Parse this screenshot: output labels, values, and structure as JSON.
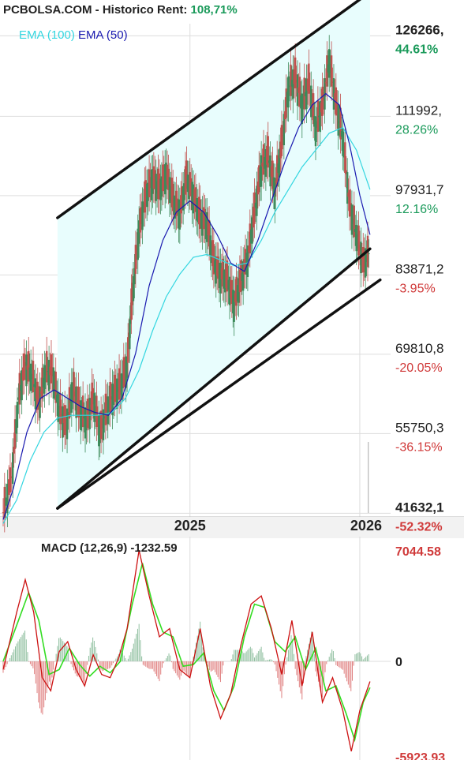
{
  "header": {
    "site": "PCBOLSA.COM - Historico",
    "rent_label": "Rent:",
    "rent_value": "108,71%"
  },
  "legend": {
    "ema100": "EMA (100)",
    "ema50": "EMA (50)"
  },
  "colors": {
    "ema100": "#33d6e0",
    "ema50": "#1a1ab0",
    "candle_up": "#3c8a5a",
    "candle_down": "#c0504d",
    "positive": "#1a9a5a",
    "negative": "#d03a3a",
    "channel_fill": "#e8fdfd",
    "macd_line": "#cc1111",
    "signal_line": "#33dd22"
  },
  "chart_data": [
    {
      "type": "line",
      "subtype": "candlestick",
      "x_ticks": [
        "2025",
        "2026"
      ],
      "y_levels": [
        {
          "price": "126266,",
          "pct": "44.61%",
          "sign": "pos",
          "bold": true
        },
        {
          "price": "111992,",
          "pct": "28.26%",
          "sign": "pos",
          "bold": false
        },
        {
          "price": "97931,7",
          "pct": "12.16%",
          "sign": "pos",
          "bold": false
        },
        {
          "price": "83871,2",
          "pct": "-3.95%",
          "sign": "neg",
          "bold": false
        },
        {
          "price": "69810,8",
          "pct": "-20.05%",
          "sign": "neg",
          "bold": false
        },
        {
          "price": "55750,3",
          "pct": "-36.15%",
          "sign": "neg",
          "bold": false
        },
        {
          "price": "41632,1",
          "pct": "-52.32%",
          "sign": "neg",
          "bold": true
        }
      ],
      "ylim": [
        40000,
        135000
      ],
      "xlim": [
        2023.9,
        2026.2
      ],
      "grid": true,
      "close_series": [
        [
          2023.9,
          41800
        ],
        [
          2023.95,
          48000
        ],
        [
          2023.99,
          62000
        ],
        [
          2024.03,
          68000
        ],
        [
          2024.07,
          66000
        ],
        [
          2024.11,
          61000
        ],
        [
          2024.15,
          67000
        ],
        [
          2024.19,
          66500
        ],
        [
          2024.23,
          60000
        ],
        [
          2024.27,
          57000
        ],
        [
          2024.31,
          64000
        ],
        [
          2024.35,
          60000
        ],
        [
          2024.39,
          58000
        ],
        [
          2024.43,
          62000
        ],
        [
          2024.47,
          56000
        ],
        [
          2024.51,
          60000
        ],
        [
          2024.55,
          63000
        ],
        [
          2024.59,
          64000
        ],
        [
          2024.63,
          68000
        ],
        [
          2024.66,
          80000
        ],
        [
          2024.7,
          92000
        ],
        [
          2024.74,
          98000
        ],
        [
          2024.78,
          101000
        ],
        [
          2024.82,
          99000
        ],
        [
          2024.86,
          102000
        ],
        [
          2024.9,
          97000
        ],
        [
          2024.94,
          95000
        ],
        [
          2024.98,
          101000
        ],
        [
          2025.02,
          98000
        ],
        [
          2025.06,
          94000
        ],
        [
          2025.1,
          93000
        ],
        [
          2025.14,
          86000
        ],
        [
          2025.18,
          84000
        ],
        [
          2025.22,
          83000
        ],
        [
          2025.26,
          79000
        ],
        [
          2025.3,
          83000
        ],
        [
          2025.34,
          87000
        ],
        [
          2025.38,
          95000
        ],
        [
          2025.42,
          103000
        ],
        [
          2025.46,
          105000
        ],
        [
          2025.5,
          99000
        ],
        [
          2025.54,
          107000
        ],
        [
          2025.58,
          117000
        ],
        [
          2025.62,
          119000
        ],
        [
          2025.66,
          114000
        ],
        [
          2025.7,
          118000
        ],
        [
          2025.74,
          110000
        ],
        [
          2025.78,
          114000
        ],
        [
          2025.82,
          122000
        ],
        [
          2025.86,
          114000
        ],
        [
          2025.9,
          108000
        ],
        [
          2025.94,
          96000
        ],
        [
          2025.98,
          91000
        ],
        [
          2026.02,
          86000
        ],
        [
          2026.06,
          88000
        ]
      ],
      "ema100_series": [
        [
          2023.9,
          39800
        ],
        [
          2023.98,
          44000
        ],
        [
          2024.06,
          51000
        ],
        [
          2024.14,
          56000
        ],
        [
          2024.22,
          58500
        ],
        [
          2024.3,
          59000
        ],
        [
          2024.38,
          59000
        ],
        [
          2024.46,
          59000
        ],
        [
          2024.54,
          59500
        ],
        [
          2024.62,
          62000
        ],
        [
          2024.7,
          67000
        ],
        [
          2024.78,
          74000
        ],
        [
          2024.86,
          80000
        ],
        [
          2024.94,
          84000
        ],
        [
          2025.02,
          87000
        ],
        [
          2025.1,
          87500
        ],
        [
          2025.18,
          86500
        ],
        [
          2025.26,
          85500
        ],
        [
          2025.34,
          86000
        ],
        [
          2025.42,
          90000
        ],
        [
          2025.5,
          95000
        ],
        [
          2025.58,
          99000
        ],
        [
          2025.66,
          103000
        ],
        [
          2025.74,
          106000
        ],
        [
          2025.82,
          109000
        ],
        [
          2025.9,
          110000
        ],
        [
          2025.98,
          106000
        ],
        [
          2026.06,
          99000
        ]
      ],
      "ema50_series": [
        [
          2023.9,
          40500
        ],
        [
          2023.96,
          46000
        ],
        [
          2024.04,
          56000
        ],
        [
          2024.12,
          62000
        ],
        [
          2024.2,
          63500
        ],
        [
          2024.28,
          62000
        ],
        [
          2024.36,
          60500
        ],
        [
          2024.44,
          59500
        ],
        [
          2024.52,
          59000
        ],
        [
          2024.6,
          62000
        ],
        [
          2024.68,
          70000
        ],
        [
          2024.76,
          82000
        ],
        [
          2024.84,
          90000
        ],
        [
          2024.92,
          95000
        ],
        [
          2025.0,
          97000
        ],
        [
          2025.08,
          95000
        ],
        [
          2025.16,
          91000
        ],
        [
          2025.24,
          86000
        ],
        [
          2025.32,
          84500
        ],
        [
          2025.4,
          90000
        ],
        [
          2025.48,
          97000
        ],
        [
          2025.56,
          104000
        ],
        [
          2025.64,
          110000
        ],
        [
          2025.72,
          114000
        ],
        [
          2025.8,
          116000
        ],
        [
          2025.88,
          114000
        ],
        [
          2025.94,
          107000
        ],
        [
          2026.0,
          98000
        ],
        [
          2026.06,
          91000
        ]
      ]
    },
    {
      "type": "line",
      "subtype": "macd",
      "title": "MACD (12,26,9)",
      "value": "-1232.59",
      "y_labels": [
        {
          "text": "7044.58",
          "sign": "neg"
        },
        {
          "text": "0",
          "sign": "zero"
        },
        {
          "text": "-5923.93",
          "sign": "neg"
        }
      ],
      "ylim": [
        -5923.93,
        7044.58
      ],
      "macd_series": [
        [
          2023.9,
          -500
        ],
        [
          2023.98,
          3000
        ],
        [
          2024.03,
          5000
        ],
        [
          2024.08,
          3000
        ],
        [
          2024.13,
          -1000
        ],
        [
          2024.18,
          -1800
        ],
        [
          2024.23,
          600
        ],
        [
          2024.28,
          1200
        ],
        [
          2024.33,
          -500
        ],
        [
          2024.38,
          -1500
        ],
        [
          2024.43,
          400
        ],
        [
          2024.48,
          -800
        ],
        [
          2024.53,
          -1000
        ],
        [
          2024.58,
          200
        ],
        [
          2024.63,
          2000
        ],
        [
          2024.7,
          6800
        ],
        [
          2024.76,
          4000
        ],
        [
          2024.82,
          1500
        ],
        [
          2024.88,
          2000
        ],
        [
          2024.94,
          -500
        ],
        [
          2025.0,
          -1000
        ],
        [
          2025.06,
          2000
        ],
        [
          2025.12,
          -1500
        ],
        [
          2025.18,
          -3500
        ],
        [
          2025.24,
          -2000
        ],
        [
          2025.3,
          1000
        ],
        [
          2025.36,
          3500
        ],
        [
          2025.42,
          4000
        ],
        [
          2025.48,
          2000
        ],
        [
          2025.54,
          -800
        ],
        [
          2025.6,
          2500
        ],
        [
          2025.66,
          -1500
        ],
        [
          2025.72,
          1800
        ],
        [
          2025.78,
          -2500
        ],
        [
          2025.84,
          -1000
        ],
        [
          2025.9,
          -3000
        ],
        [
          2025.95,
          -5500
        ],
        [
          2026.0,
          -3000
        ],
        [
          2026.06,
          -1232.59
        ]
      ],
      "signal_series": [
        [
          2023.9,
          0
        ],
        [
          2023.99,
          2500
        ],
        [
          2024.05,
          4200
        ],
        [
          2024.11,
          2500
        ],
        [
          2024.17,
          -800
        ],
        [
          2024.23,
          -500
        ],
        [
          2024.29,
          800
        ],
        [
          2024.35,
          -200
        ],
        [
          2024.41,
          -900
        ],
        [
          2024.47,
          -300
        ],
        [
          2024.53,
          -700
        ],
        [
          2024.59,
          0
        ],
        [
          2024.66,
          3500
        ],
        [
          2024.72,
          6000
        ],
        [
          2024.78,
          3500
        ],
        [
          2024.84,
          1800
        ],
        [
          2024.9,
          1500
        ],
        [
          2024.96,
          -300
        ],
        [
          2025.02,
          -200
        ],
        [
          2025.08,
          500
        ],
        [
          2025.14,
          -1800
        ],
        [
          2025.2,
          -3000
        ],
        [
          2025.26,
          -1500
        ],
        [
          2025.32,
          1500
        ],
        [
          2025.38,
          3500
        ],
        [
          2025.44,
          3300
        ],
        [
          2025.5,
          1200
        ],
        [
          2025.56,
          600
        ],
        [
          2025.62,
          1500
        ],
        [
          2025.68,
          -500
        ],
        [
          2025.74,
          800
        ],
        [
          2025.8,
          -1800
        ],
        [
          2025.86,
          -1500
        ],
        [
          2025.92,
          -3200
        ],
        [
          2025.97,
          -4800
        ],
        [
          2026.02,
          -2500
        ],
        [
          2026.06,
          -1600
        ]
      ]
    }
  ]
}
